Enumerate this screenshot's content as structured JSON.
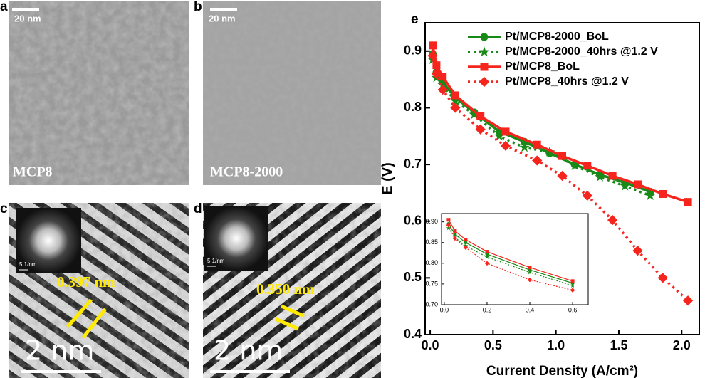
{
  "panels": [
    {
      "label": "a",
      "scale_bar": "20 nm",
      "caption": "MCP8"
    },
    {
      "label": "b",
      "scale_bar": "20 nm",
      "caption": "MCP8-2000"
    },
    {
      "label": "c",
      "fft_scale": "5 1/nm",
      "spacing": "0.397 nm",
      "scale_bar": "2 nm"
    },
    {
      "label": "d",
      "fft_scale": "5 1/nm",
      "spacing": "0.350 nm",
      "scale_bar": "2 nm"
    }
  ],
  "chart_data": [
    {
      "type": "line",
      "label": "e",
      "xlabel": "Current Density (A/cm²)",
      "ylabel": "E (V)",
      "xlim": [
        -0.04,
        2.14
      ],
      "ylim": [
        0.4,
        0.95
      ],
      "xticks": [
        {
          "value": 0,
          "label": "0.0"
        },
        0.5,
        {
          "value": 1,
          "label": "1.0"
        },
        1.5,
        {
          "value": 2,
          "label": "2.0"
        }
      ],
      "yticks": [
        0.4,
        0.5,
        0.6,
        0.7,
        0.8,
        0.9
      ],
      "legend": "upper right",
      "series": [
        {
          "name": "Pt/MCP8-2000_BoL",
          "color": "#178a17",
          "marker": "circle",
          "dashed": false,
          "x": [
            0.02,
            0.05,
            0.1,
            0.2,
            0.35,
            0.55,
            0.75,
            0.95,
            1.15,
            1.35,
            1.55,
            1.75
          ],
          "values": [
            0.895,
            0.862,
            0.845,
            0.818,
            0.792,
            0.758,
            0.74,
            0.72,
            0.7,
            0.682,
            0.668,
            0.652
          ]
        },
        {
          "name": "Pt/MCP8-2000_40hrs @1.2 V",
          "color": "#178a17",
          "marker": "star",
          "dashed": true,
          "x": [
            0.02,
            0.05,
            0.1,
            0.2,
            0.35,
            0.55,
            0.75,
            0.95,
            1.15,
            1.35,
            1.55,
            1.75
          ],
          "values": [
            0.885,
            0.853,
            0.84,
            0.812,
            0.788,
            0.75,
            0.73,
            0.722,
            0.698,
            0.678,
            0.662,
            0.645
          ]
        },
        {
          "name": "Pt/MCP8_BoL",
          "color": "#f5251e",
          "marker": "square",
          "dashed": false,
          "x": [
            0.02,
            0.05,
            0.1,
            0.2,
            0.4,
            0.6,
            0.85,
            1.05,
            1.25,
            1.45,
            1.65,
            1.85,
            2.05
          ],
          "values": [
            0.91,
            0.875,
            0.855,
            0.822,
            0.785,
            0.758,
            0.735,
            0.715,
            0.698,
            0.68,
            0.665,
            0.648,
            0.634
          ]
        },
        {
          "name": "Pt/MCP8_40hrs @1.2 V",
          "color": "#f5251e",
          "marker": "diamond",
          "dashed": true,
          "x": [
            0.02,
            0.05,
            0.1,
            0.2,
            0.4,
            0.6,
            0.85,
            1.05,
            1.25,
            1.45,
            1.65,
            1.85,
            2.05
          ],
          "values": [
            0.892,
            0.86,
            0.832,
            0.8,
            0.762,
            0.733,
            0.707,
            0.68,
            0.645,
            0.602,
            0.548,
            0.5,
            0.46
          ]
        }
      ]
    },
    {
      "type": "line",
      "xlim": [
        -0.013,
        0.673
      ],
      "ylim": [
        0.7,
        0.92
      ],
      "xticks": [
        {
          "value": 0,
          "label": "0.0"
        },
        0.2,
        0.4,
        0.6
      ],
      "yticks": [
        {
          "value": 0.7,
          "label": "0.70"
        },
        0.75,
        {
          "value": 0.8,
          "label": "0.80"
        },
        0.85,
        {
          "value": 0.9,
          "label": "0.90"
        }
      ],
      "series": [
        {
          "color": "#178a17",
          "marker": "circle",
          "dashed": false,
          "x": [
            0.02,
            0.05,
            0.1,
            0.2,
            0.4,
            0.6
          ],
          "values": [
            0.895,
            0.87,
            0.85,
            0.822,
            0.784,
            0.752
          ]
        },
        {
          "color": "#178a17",
          "marker": "star",
          "dashed": true,
          "x": [
            0.02,
            0.05,
            0.1,
            0.2,
            0.4,
            0.6
          ],
          "values": [
            0.885,
            0.862,
            0.842,
            0.815,
            0.778,
            0.746
          ]
        },
        {
          "color": "#f5251e",
          "marker": "square",
          "dashed": false,
          "x": [
            0.02,
            0.05,
            0.1,
            0.2,
            0.4,
            0.6
          ],
          "values": [
            0.905,
            0.878,
            0.857,
            0.828,
            0.79,
            0.757
          ]
        },
        {
          "color": "#f5251e",
          "marker": "diamond",
          "dashed": true,
          "x": [
            0.02,
            0.05,
            0.1,
            0.2,
            0.4,
            0.6
          ],
          "values": [
            0.892,
            0.86,
            0.838,
            0.8,
            0.76,
            0.735
          ]
        }
      ]
    }
  ]
}
